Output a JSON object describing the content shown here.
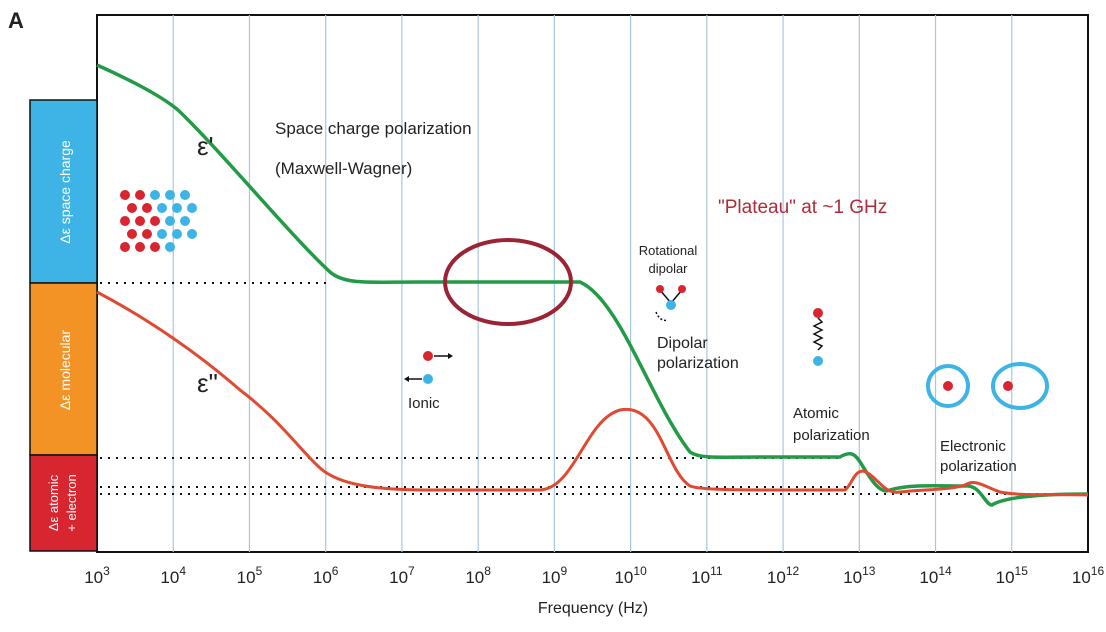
{
  "panel_label": "A",
  "side_bands": [
    {
      "lines": [
        "Δε space charge"
      ]
    },
    {
      "lines": [
        "Δε molecular"
      ]
    },
    {
      "lines": [
        "Δε atomic",
        "+ electron"
      ]
    }
  ],
  "curve_labels": {
    "real": "ε'",
    "imaginary": "ε\""
  },
  "annotations": {
    "space_charge": [
      "Space charge polarization",
      "(Maxwell-Wagner)"
    ],
    "plateau": "\"Plateau\" at ~1 GHz",
    "rotational": [
      "Rotational",
      "dipolar"
    ],
    "dipolar": [
      "Dipolar",
      "polarization"
    ],
    "ionic": "Ionic",
    "atomic": [
      "Atomic",
      "polarization"
    ],
    "electronic": [
      "Electronic",
      "polarization"
    ]
  },
  "x_axis": {
    "label": "Frequency (Hz)",
    "base": "10",
    "exponents": [
      "3",
      "4",
      "5",
      "6",
      "7",
      "8",
      "9",
      "10",
      "11",
      "12",
      "13",
      "14",
      "15",
      "16"
    ]
  }
}
